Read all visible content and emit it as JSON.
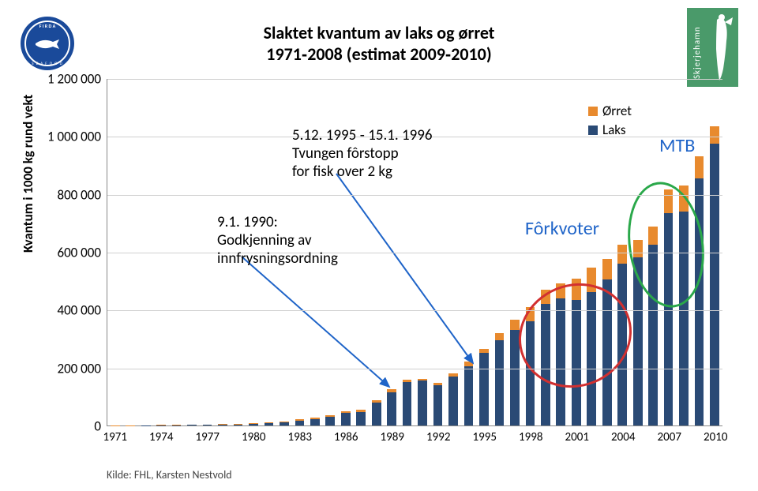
{
  "title_line1": "Slaktet kvantum av laks og ørret",
  "title_line2": "1971‑2008 (estimat 2009‑2010)",
  "ylabel": "Kvantum i 1000 kg rund vekt",
  "source": "Kilde: FHL, Karsten Nestvold",
  "legend": {
    "orret": "Ørret",
    "laks": "Laks"
  },
  "colors": {
    "laks": "#2a4a75",
    "orret": "#e88a2e",
    "grid": "#d0d0d0",
    "axis": "#888888",
    "annot_arrow": "#1f64c8",
    "ellipse_red": "#d23030",
    "ellipse_green": "#2aa84a",
    "logo_left_bg": "#1a4a9a",
    "logo_right_bg": "#4a9a6a"
  },
  "chart": {
    "type": "stacked-bar",
    "ymax": 1200000,
    "ytick_step": 200000,
    "yticks": [
      "0",
      "200 000",
      "400 000",
      "600 000",
      "800 000",
      "1 000 000",
      "1 200 000"
    ],
    "years": [
      1971,
      1972,
      1973,
      1974,
      1975,
      1976,
      1977,
      1978,
      1979,
      1980,
      1981,
      1982,
      1983,
      1984,
      1985,
      1986,
      1987,
      1988,
      1989,
      1990,
      1991,
      1992,
      1993,
      1994,
      1995,
      1996,
      1997,
      1998,
      1999,
      2000,
      2001,
      2002,
      2003,
      2004,
      2005,
      2006,
      2007,
      2008,
      2009,
      2010
    ],
    "xtick_years": [
      1971,
      1974,
      1977,
      1980,
      1983,
      1986,
      1989,
      1992,
      1995,
      1998,
      2001,
      2004,
      2007,
      2010
    ],
    "laks": [
      100,
      150,
      250,
      600,
      900,
      1500,
      2000,
      3500,
      4000,
      4500,
      8000,
      10000,
      17000,
      22000,
      30000,
      45000,
      47000,
      80000,
      115000,
      150000,
      155000,
      140000,
      170000,
      205000,
      250000,
      295000,
      330000,
      360000,
      420000,
      440000,
      435000,
      460000,
      505000,
      560000,
      580000,
      625000,
      735000,
      740000,
      855000,
      975000
    ],
    "orret": [
      400,
      650,
      1000,
      1500,
      1800,
      1900,
      2100,
      2000,
      2200,
      3500,
      4000,
      5000,
      5000,
      4000,
      5000,
      5000,
      8000,
      6000,
      10000,
      9000,
      6000,
      7000,
      10000,
      15000,
      15000,
      23000,
      35000,
      50000,
      50000,
      50000,
      72000,
      85000,
      70000,
      65000,
      60000,
      62000,
      80000,
      90000,
      75000,
      60000
    ]
  },
  "annots": {
    "a1": {
      "line1": "9.1. 1990:",
      "line2": "Godkjenning av",
      "line3": "innfrysningsordning"
    },
    "a2": {
      "line1": "5.12. 1995 ‑ 15.1. 1996",
      "line2": "Tvungen fôrstopp",
      "line3": "for fisk over 2 kg"
    },
    "a3": "Fôrkvoter",
    "a4": "MTB"
  }
}
